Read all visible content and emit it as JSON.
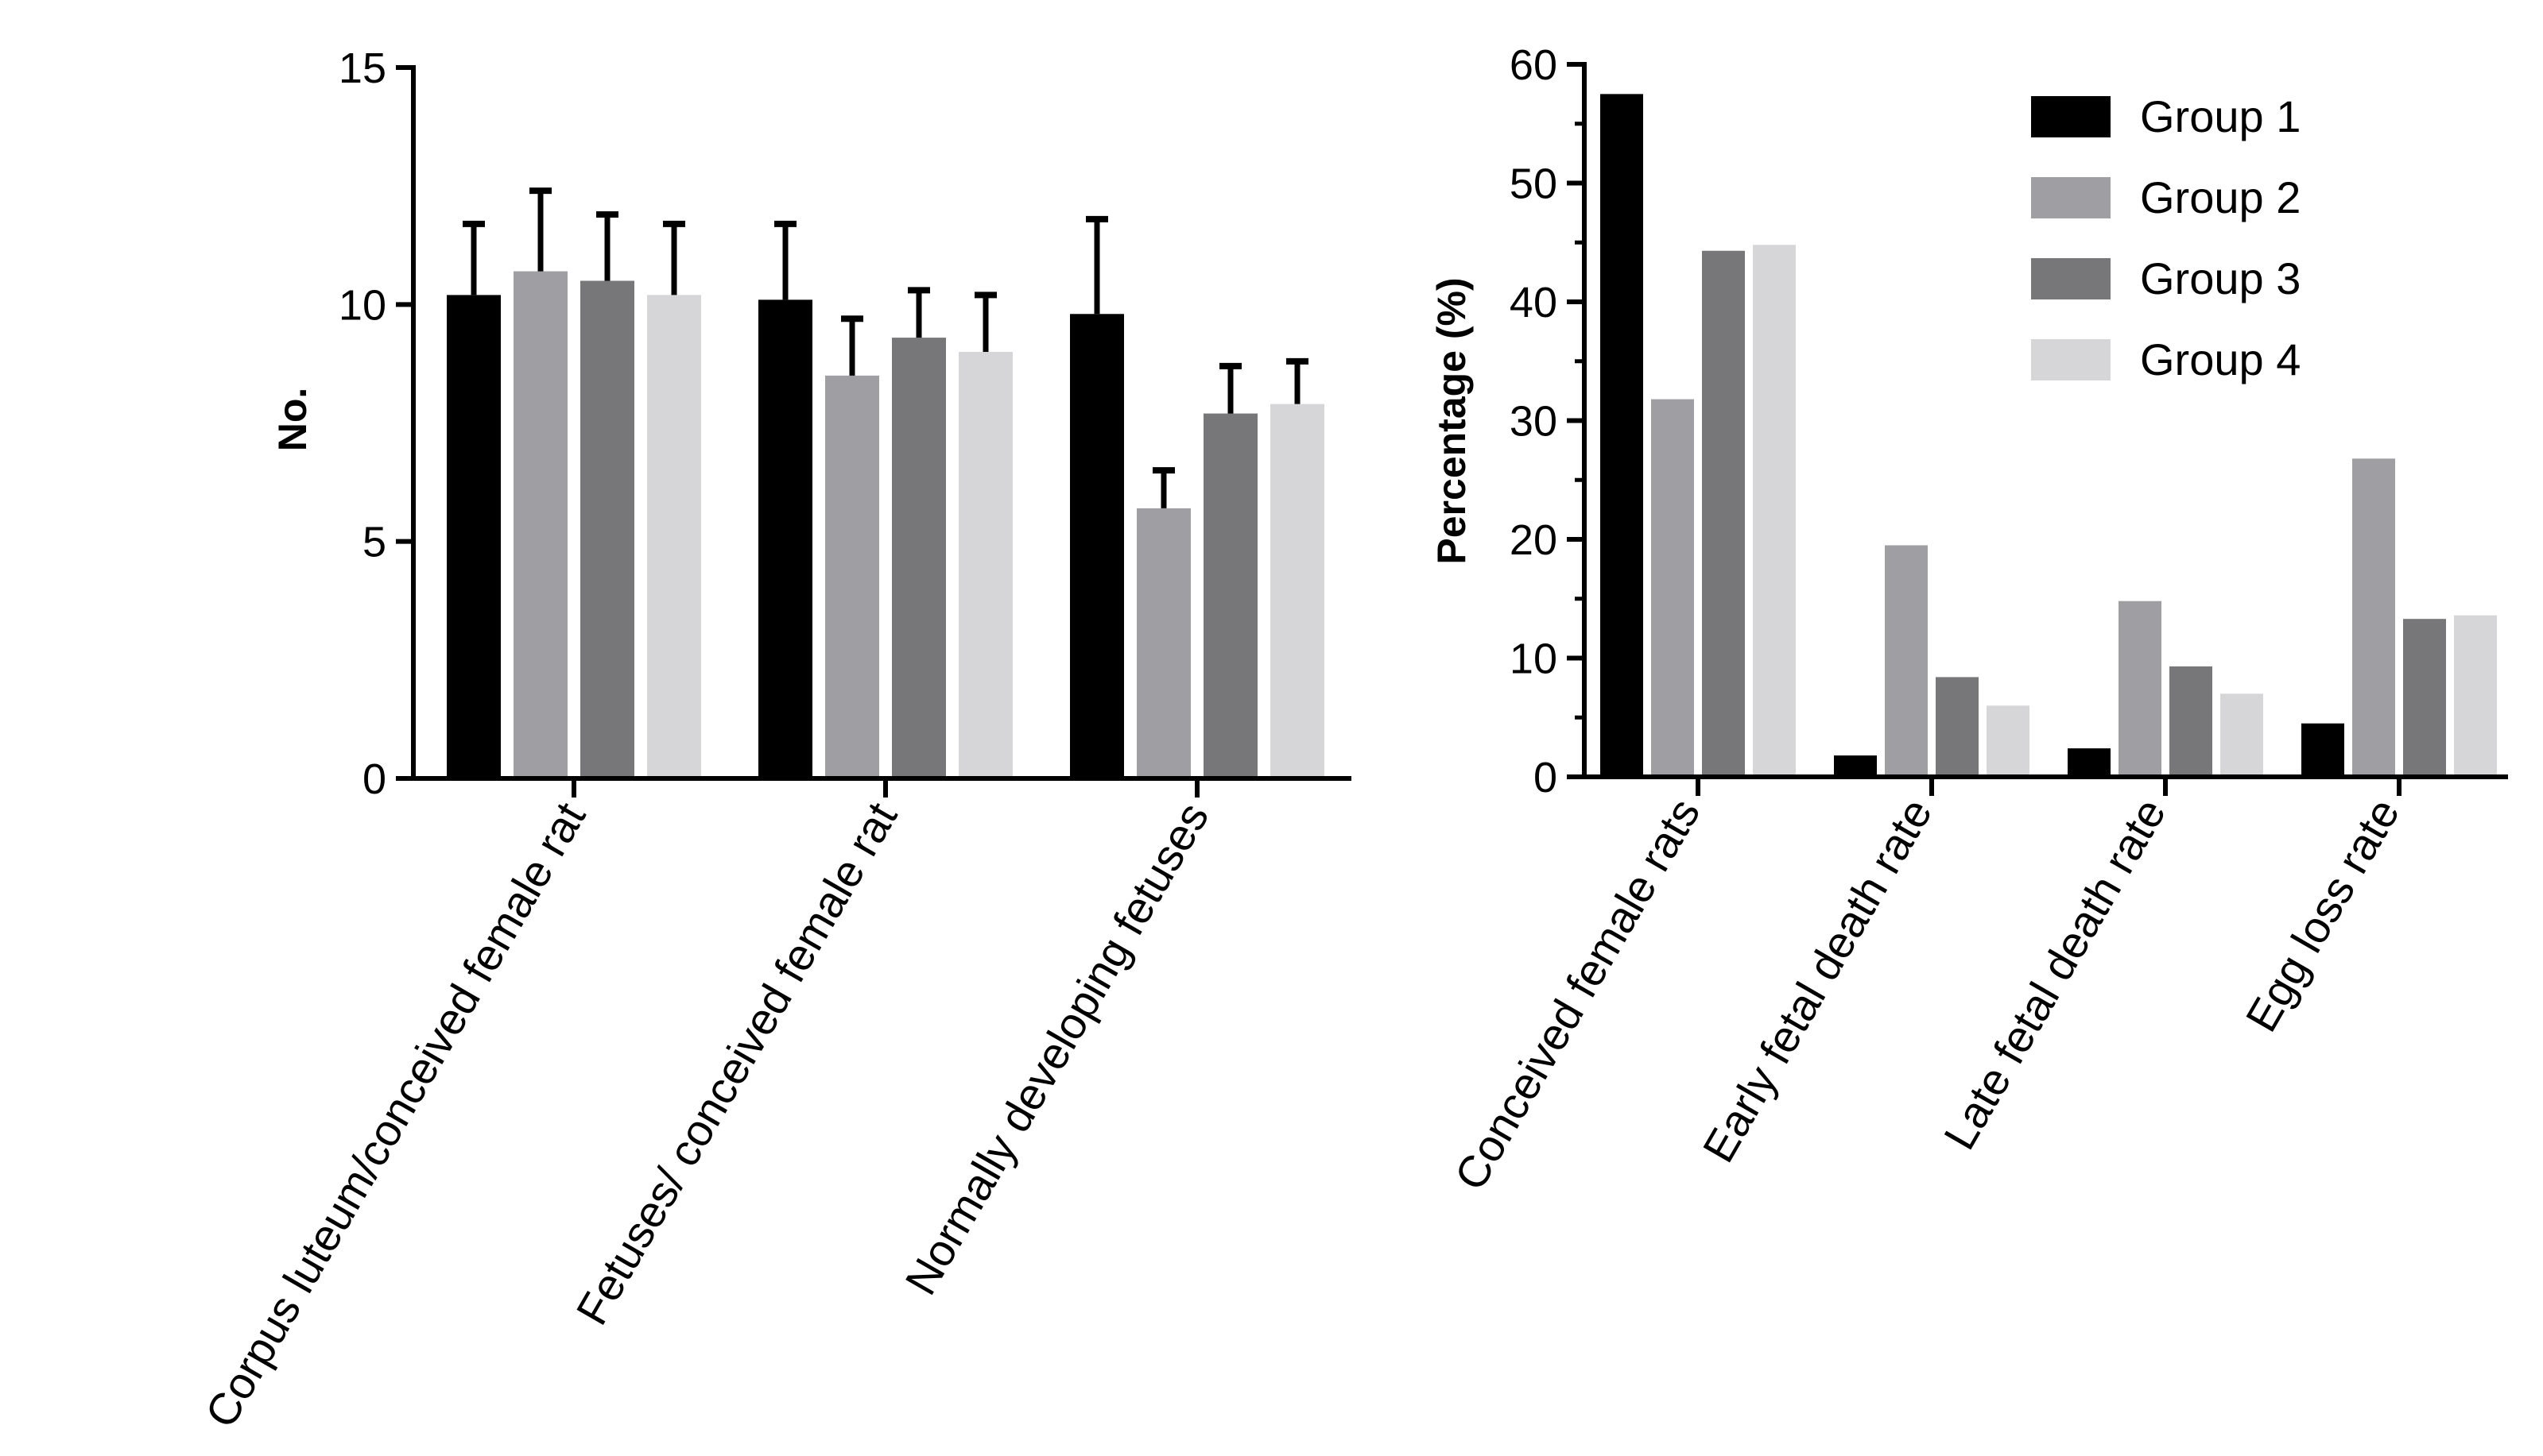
{
  "colors": {
    "Group 1": "#000000",
    "Group 2": "#9e9ea3",
    "Group 3": "#77777a",
    "Group 4": "#d6d6d8"
  },
  "chart_data": [
    {
      "type": "bar",
      "title": "",
      "xlabel": "",
      "ylabel": "No.",
      "ylim": [
        0,
        15
      ],
      "yticks": [
        "0",
        "5",
        "10",
        "15"
      ],
      "categories": [
        "Corpus luteum/conceived female rat",
        "Fetuses/ conceived female rat",
        "Normally developing fetuses"
      ],
      "series": [
        {
          "name": "Group 1",
          "values": [
            10.2,
            10.1,
            9.8
          ],
          "errors": [
            1.5,
            1.6,
            2.0
          ]
        },
        {
          "name": "Group 2",
          "values": [
            10.7,
            8.5,
            5.7
          ],
          "errors": [
            1.7,
            1.2,
            0.8
          ]
        },
        {
          "name": "Group 3",
          "values": [
            10.5,
            9.3,
            7.7
          ],
          "errors": [
            1.4,
            1.0,
            1.0
          ]
        },
        {
          "name": "Group 4",
          "values": [
            10.2,
            9.0,
            7.9
          ],
          "errors": [
            1.5,
            1.2,
            0.9
          ]
        }
      ]
    },
    {
      "type": "bar",
      "title": "",
      "xlabel": "",
      "ylabel": "Percentage (%)",
      "ylim": [
        0,
        60
      ],
      "yticks": [
        "0",
        "10",
        "20",
        "30",
        "40",
        "50",
        "60"
      ],
      "categories": [
        "Conceived female rats",
        "Early fetal death rate",
        "Late fetal death rate",
        "Egg loss rate"
      ],
      "series": [
        {
          "name": "Group 1",
          "values": [
            57.5,
            1.8,
            2.4,
            4.5
          ]
        },
        {
          "name": "Group 2",
          "values": [
            31.8,
            19.5,
            14.8,
            26.8
          ]
        },
        {
          "name": "Group 3",
          "values": [
            44.3,
            8.4,
            9.3,
            13.3
          ]
        },
        {
          "name": "Group 4",
          "values": [
            44.8,
            6.0,
            7.0,
            13.6
          ]
        }
      ],
      "legend": {
        "position": "top-right",
        "entries": [
          "Group 1",
          "Group 2",
          "Group 3",
          "Group 4"
        ]
      }
    }
  ]
}
